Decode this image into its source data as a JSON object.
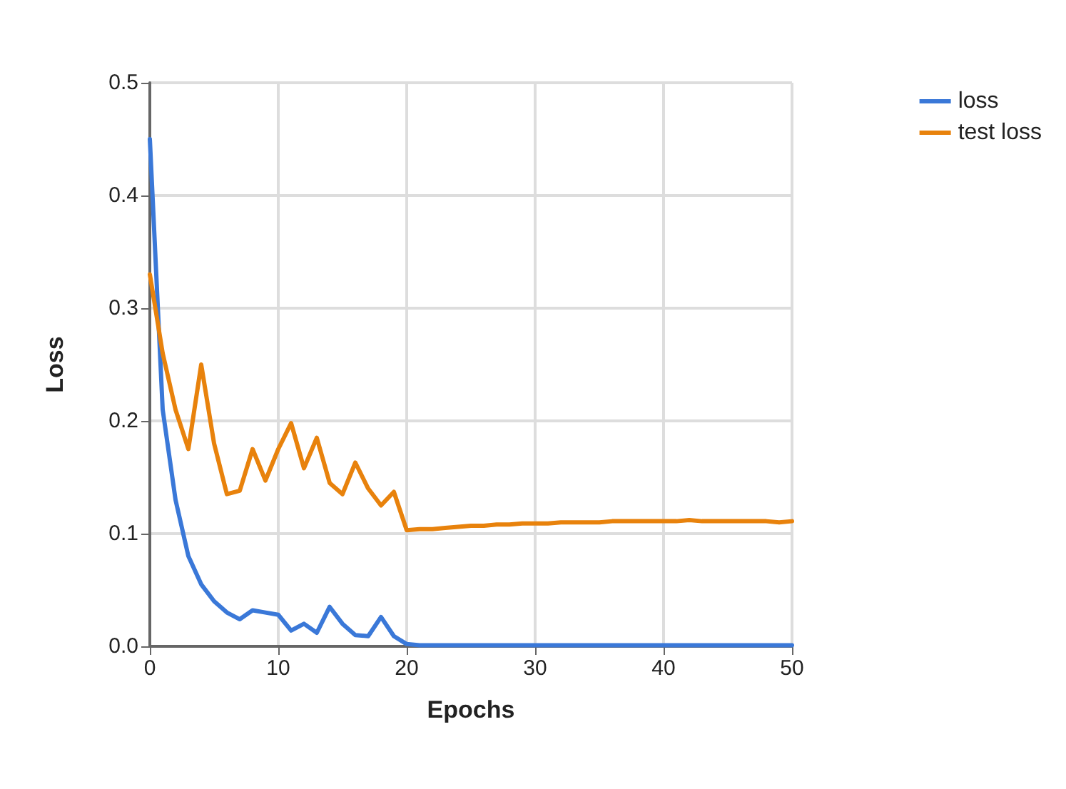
{
  "chart_data": {
    "type": "line",
    "xlabel": "Epochs",
    "ylabel": "Loss",
    "x": [
      0,
      1,
      2,
      3,
      4,
      5,
      6,
      7,
      8,
      9,
      10,
      11,
      12,
      13,
      14,
      15,
      16,
      17,
      18,
      19,
      20,
      21,
      22,
      23,
      24,
      25,
      26,
      27,
      28,
      29,
      30,
      31,
      32,
      33,
      34,
      35,
      36,
      37,
      38,
      39,
      40,
      41,
      42,
      43,
      44,
      45,
      46,
      47,
      48,
      49,
      50
    ],
    "series": [
      {
        "name": "loss",
        "color": "#3a78d8",
        "values": [
          0.45,
          0.21,
          0.13,
          0.08,
          0.055,
          0.04,
          0.03,
          0.024,
          0.032,
          0.03,
          0.028,
          0.014,
          0.02,
          0.012,
          0.035,
          0.02,
          0.01,
          0.009,
          0.026,
          0.009,
          0.002,
          0.001,
          0.001,
          0.001,
          0.001,
          0.001,
          0.001,
          0.001,
          0.001,
          0.001,
          0.001,
          0.001,
          0.001,
          0.001,
          0.001,
          0.001,
          0.001,
          0.001,
          0.001,
          0.001,
          0.001,
          0.001,
          0.001,
          0.001,
          0.001,
          0.001,
          0.001,
          0.001,
          0.001,
          0.001,
          0.001
        ]
      },
      {
        "name": "test loss",
        "color": "#e8820c",
        "values": [
          0.33,
          0.26,
          0.21,
          0.175,
          0.25,
          0.18,
          0.135,
          0.138,
          0.175,
          0.147,
          0.175,
          0.198,
          0.158,
          0.185,
          0.145,
          0.135,
          0.163,
          0.14,
          0.125,
          0.137,
          0.103,
          0.104,
          0.104,
          0.105,
          0.106,
          0.107,
          0.107,
          0.108,
          0.108,
          0.109,
          0.109,
          0.109,
          0.11,
          0.11,
          0.11,
          0.11,
          0.111,
          0.111,
          0.111,
          0.111,
          0.111,
          0.111,
          0.112,
          0.111,
          0.111,
          0.111,
          0.111,
          0.111,
          0.111,
          0.11,
          0.111
        ]
      }
    ],
    "xlim": [
      0,
      50
    ],
    "xticks": [
      0,
      10,
      20,
      30,
      40,
      50
    ],
    "ylim": [
      0,
      0.5
    ],
    "yticks": [
      {
        "value": 0,
        "label": "0.0"
      },
      0.1,
      0.2,
      0.3,
      0.4,
      0.5
    ],
    "grid": true,
    "legend": "top right",
    "marker": "none",
    "line_style": "solid"
  }
}
